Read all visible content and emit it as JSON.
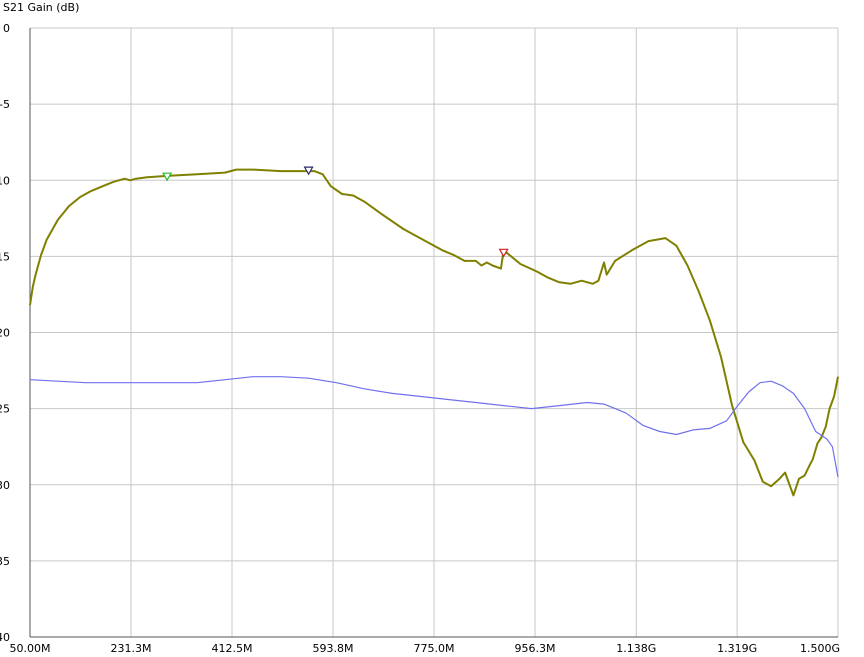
{
  "chart_data": {
    "type": "line",
    "ylabel": "S21 Gain (dB)",
    "xlabel": "",
    "x_unit": "Hz",
    "xlim": [
      50000000,
      1500000000
    ],
    "ylim": [
      -40,
      0
    ],
    "x_tick_values": [
      50000000,
      231300000,
      412500000,
      593800000,
      775000000,
      956300000,
      1138000000,
      1319000000,
      1500000000
    ],
    "x_tick_labels": [
      "50.00M",
      "231.3M",
      "412.5M",
      "593.8M",
      "775.0M",
      "956.3M",
      "1.138G",
      "1.319G",
      "1.500G"
    ],
    "y_ticks": [
      0,
      -5,
      -10,
      -15,
      -20,
      -25,
      -30,
      -35,
      -40
    ],
    "grid": true,
    "colors": {
      "series_1": "#808000",
      "series_2": "#7070ee",
      "grid": "#c8c8c8",
      "axis": "#555555"
    },
    "series": [
      {
        "color": "#808000",
        "x": [
          50000000,
          55000000,
          60000000,
          70000000,
          80000000,
          100000000,
          120000000,
          140000000,
          160000000,
          180000000,
          200000000,
          220000000,
          230000000,
          240000000,
          260000000,
          300000000,
          350000000,
          400000000,
          420000000,
          450000000,
          500000000,
          530000000,
          560000000,
          575000000,
          590000000,
          610000000,
          630000000,
          650000000,
          680000000,
          720000000,
          760000000,
          790000000,
          810000000,
          830000000,
          850000000,
          860000000,
          870000000,
          880000000,
          895000000,
          900000000,
          930000000,
          960000000,
          980000000,
          1000000000,
          1020000000,
          1040000000,
          1060000000,
          1070000000,
          1080000000,
          1085000000,
          1100000000,
          1130000000,
          1160000000,
          1190000000,
          1210000000,
          1230000000,
          1250000000,
          1270000000,
          1290000000,
          1310000000,
          1330000000,
          1350000000,
          1365000000,
          1380000000,
          1395000000,
          1405000000,
          1420000000,
          1430000000,
          1440000000,
          1448000000,
          1455000000,
          1463000000,
          1470000000,
          1478000000,
          1485000000,
          1493000000,
          1500000000
        ],
        "y": [
          -18.2,
          -17.0,
          -16.2,
          -14.9,
          -13.9,
          -12.6,
          -11.7,
          -11.1,
          -10.7,
          -10.4,
          -10.1,
          -9.9,
          -10.0,
          -9.9,
          -9.8,
          -9.7,
          -9.6,
          -9.5,
          -9.3,
          -9.3,
          -9.4,
          -9.4,
          -9.4,
          -9.6,
          -10.4,
          -10.9,
          -11.0,
          -11.4,
          -12.2,
          -13.2,
          -14.0,
          -14.6,
          -14.9,
          -15.3,
          -15.3,
          -15.6,
          -15.4,
          -15.6,
          -15.8,
          -14.6,
          -15.5,
          -16.0,
          -16.4,
          -16.7,
          -16.8,
          -16.6,
          -16.8,
          -16.6,
          -15.4,
          -16.2,
          -15.3,
          -14.6,
          -14.0,
          -13.8,
          -14.3,
          -15.6,
          -17.3,
          -19.2,
          -21.6,
          -24.8,
          -27.2,
          -28.4,
          -29.8,
          -30.1,
          -29.6,
          -29.2,
          -30.7,
          -29.6,
          -29.4,
          -28.8,
          -28.3,
          -27.3,
          -26.9,
          -26.2,
          -25.0,
          -24.2,
          -22.9
        ]
      },
      {
        "color": "#7070ee",
        "x": [
          50000000,
          100000000,
          150000000,
          200000000,
          250000000,
          300000000,
          350000000,
          400000000,
          450000000,
          500000000,
          550000000,
          600000000,
          650000000,
          700000000,
          750000000,
          800000000,
          850000000,
          900000000,
          950000000,
          1000000000,
          1050000000,
          1080000000,
          1100000000,
          1120000000,
          1150000000,
          1180000000,
          1210000000,
          1240000000,
          1270000000,
          1300000000,
          1320000000,
          1340000000,
          1360000000,
          1380000000,
          1400000000,
          1420000000,
          1440000000,
          1460000000,
          1480000000,
          1490000000,
          1500000000
        ],
        "y": [
          -23.1,
          -23.2,
          -23.3,
          -23.3,
          -23.3,
          -23.3,
          -23.3,
          -23.1,
          -22.9,
          -22.9,
          -23.0,
          -23.3,
          -23.7,
          -24.0,
          -24.2,
          -24.4,
          -24.6,
          -24.8,
          -25.0,
          -24.8,
          -24.6,
          -24.7,
          -25.0,
          -25.3,
          -26.1,
          -26.5,
          -26.7,
          -26.4,
          -26.3,
          -25.8,
          -24.8,
          -23.9,
          -23.3,
          -23.2,
          -23.5,
          -24.0,
          -25.0,
          -26.5,
          -27.0,
          -27.5,
          -29.5
        ]
      }
    ],
    "markers": [
      {
        "x": 296000000,
        "y": -9.8,
        "color": "#22bb22"
      },
      {
        "x": 550000000,
        "y": -9.4,
        "color": "#2a2a6a"
      },
      {
        "x": 900000000,
        "y": -14.8,
        "color": "#cc2222"
      }
    ]
  }
}
